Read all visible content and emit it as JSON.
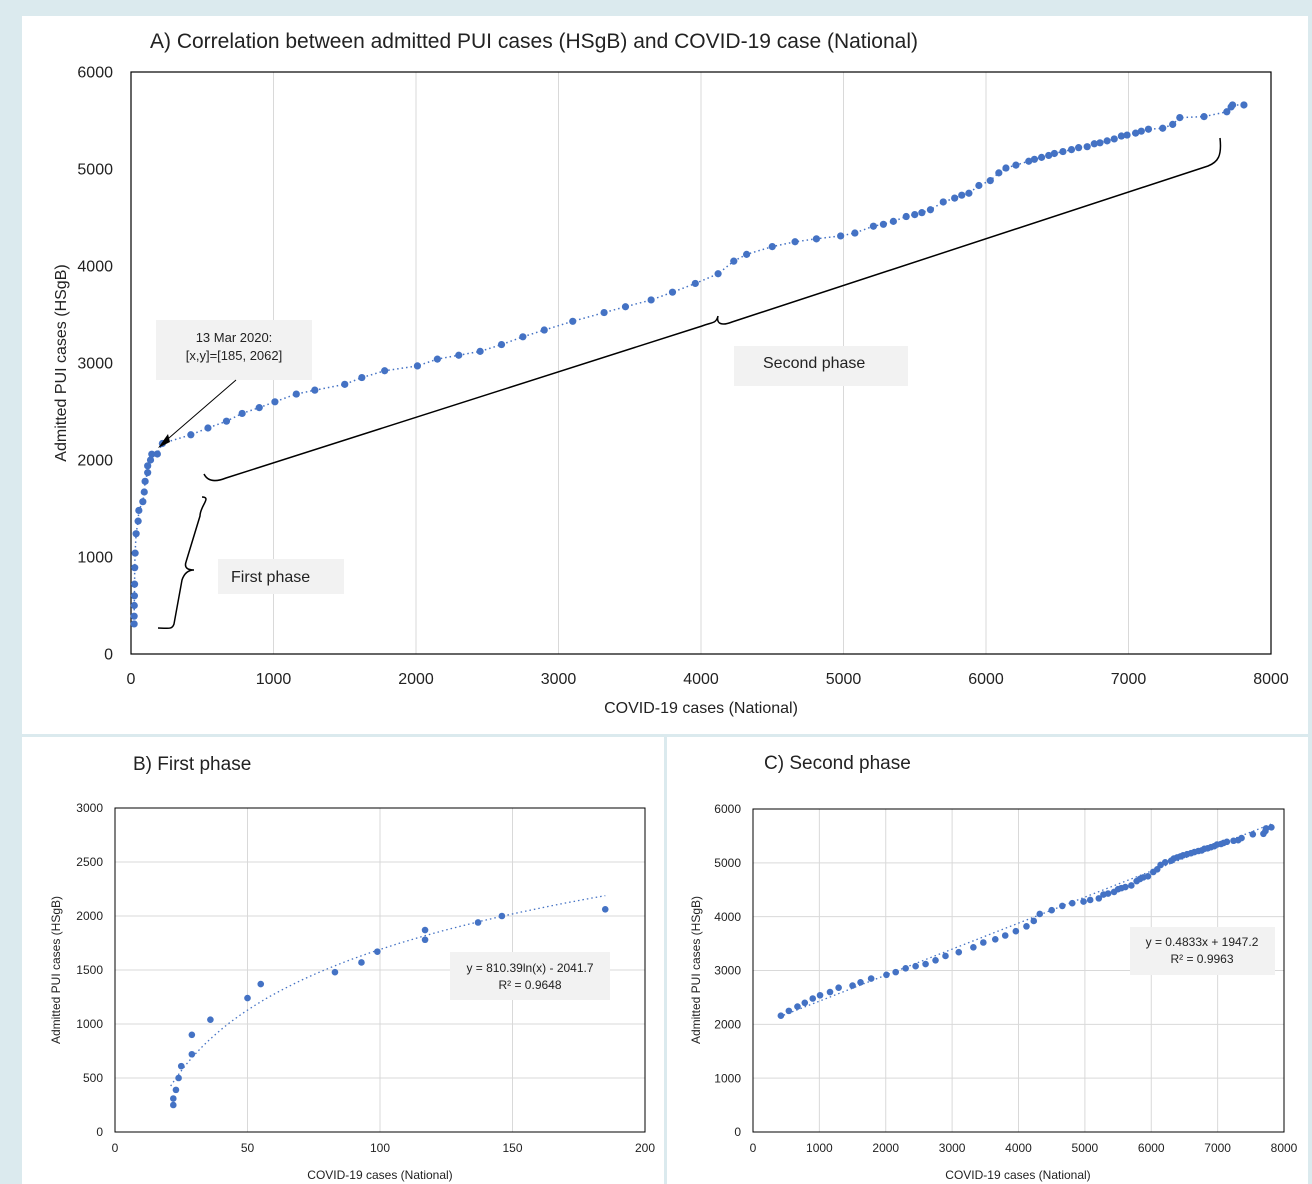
{
  "panels": {
    "a": {
      "title": "A) Correlation between admitted PUI cases (HSgB) and COVID-19 case (National)",
      "callout_line1": "13 Mar 2020:",
      "callout_line2": "[x,y]=[185, 2062]",
      "first_phase_label": "First phase",
      "second_phase_label": "Second phase"
    },
    "b": {
      "title": "B) First phase",
      "equation": "y = 810.39ln(x) - 2041.7",
      "r2": "R² = 0.9648"
    },
    "c": {
      "title": "C) Second phase",
      "equation": "y = 0.4833x + 1947.2",
      "r2": "R² = 0.9963"
    }
  },
  "colors": {
    "marker": "#4472c4",
    "grid": "#d9d9d9",
    "callout_bg": "#f2f2f2"
  },
  "chart_data": [
    {
      "type": "scatter",
      "title": "A) Correlation between admitted PUI cases (HSgB) and COVID-19 case (National)",
      "xlabel": "COVID-19 cases (National)",
      "ylabel": "Admitted PUI cases (HSgB)",
      "xlim": [
        0,
        8000
      ],
      "ylim": [
        0,
        6000
      ],
      "xticks": [
        0,
        1000,
        2000,
        3000,
        4000,
        5000,
        6000,
        7000,
        8000
      ],
      "yticks": [
        0,
        1000,
        2000,
        3000,
        4000,
        5000,
        6000
      ],
      "grid": "vertical",
      "trendline": "dotted, follows points",
      "points": [
        [
          22,
          310
        ],
        [
          22,
          390
        ],
        [
          23,
          500
        ],
        [
          24,
          600
        ],
        [
          25,
          720
        ],
        [
          26,
          890
        ],
        [
          29,
          1040
        ],
        [
          36,
          1240
        ],
        [
          50,
          1370
        ],
        [
          55,
          1480
        ],
        [
          83,
          1570
        ],
        [
          93,
          1670
        ],
        [
          99,
          1780
        ],
        [
          117,
          1870
        ],
        [
          117,
          1940
        ],
        [
          137,
          2000
        ],
        [
          146,
          2060
        ],
        [
          185,
          2062
        ],
        [
          220,
          2170
        ],
        [
          420,
          2260
        ],
        [
          540,
          2330
        ],
        [
          670,
          2400
        ],
        [
          780,
          2480
        ],
        [
          900,
          2540
        ],
        [
          1010,
          2600
        ],
        [
          1160,
          2680
        ],
        [
          1290,
          2720
        ],
        [
          1500,
          2780
        ],
        [
          1620,
          2850
        ],
        [
          1780,
          2920
        ],
        [
          2010,
          2970
        ],
        [
          2150,
          3040
        ],
        [
          2300,
          3080
        ],
        [
          2450,
          3120
        ],
        [
          2600,
          3190
        ],
        [
          2750,
          3270
        ],
        [
          2900,
          3340
        ],
        [
          3100,
          3430
        ],
        [
          3320,
          3520
        ],
        [
          3470,
          3580
        ],
        [
          3650,
          3650
        ],
        [
          3800,
          3730
        ],
        [
          3960,
          3820
        ],
        [
          4120,
          3920
        ],
        [
          4230,
          4050
        ],
        [
          4320,
          4120
        ],
        [
          4500,
          4200
        ],
        [
          4660,
          4250
        ],
        [
          4810,
          4280
        ],
        [
          4980,
          4310
        ],
        [
          5080,
          4340
        ],
        [
          5210,
          4410
        ],
        [
          5280,
          4430
        ],
        [
          5350,
          4460
        ],
        [
          5440,
          4510
        ],
        [
          5500,
          4530
        ],
        [
          5550,
          4550
        ],
        [
          5610,
          4580
        ],
        [
          5700,
          4660
        ],
        [
          5780,
          4700
        ],
        [
          5830,
          4730
        ],
        [
          5880,
          4750
        ],
        [
          5950,
          4830
        ],
        [
          6030,
          4880
        ],
        [
          6090,
          4960
        ],
        [
          6140,
          5010
        ],
        [
          6210,
          5040
        ],
        [
          6300,
          5080
        ],
        [
          6340,
          5100
        ],
        [
          6390,
          5120
        ],
        [
          6440,
          5140
        ],
        [
          6480,
          5160
        ],
        [
          6540,
          5180
        ],
        [
          6600,
          5200
        ],
        [
          6650,
          5220
        ],
        [
          6710,
          5230
        ],
        [
          6760,
          5260
        ],
        [
          6800,
          5270
        ],
        [
          6850,
          5290
        ],
        [
          6900,
          5310
        ],
        [
          6950,
          5340
        ],
        [
          6990,
          5350
        ],
        [
          7050,
          5370
        ],
        [
          7090,
          5390
        ],
        [
          7140,
          5410
        ],
        [
          7240,
          5420
        ],
        [
          7310,
          5460
        ],
        [
          7360,
          5530
        ],
        [
          7530,
          5540
        ],
        [
          7690,
          5590
        ],
        [
          7720,
          5640
        ],
        [
          7730,
          5660
        ],
        [
          7810,
          5660
        ]
      ]
    },
    {
      "type": "scatter",
      "title": "B) First phase",
      "xlabel": "COVID-19 cases (National)",
      "ylabel": "Admitted PUI cases (HSgB)",
      "xlim": [
        0,
        200
      ],
      "ylim": [
        0,
        3000
      ],
      "xticks": [
        0,
        50,
        100,
        150,
        200
      ],
      "yticks": [
        0,
        500,
        1000,
        1500,
        2000,
        2500,
        3000
      ],
      "grid": "both",
      "trendline": {
        "type": "logarithmic",
        "a": 810.39,
        "b": -2041.7,
        "equation": "y = 810.39ln(x) - 2041.7",
        "r2": "R² = 0.9648"
      },
      "points": [
        [
          22,
          250
        ],
        [
          22,
          310
        ],
        [
          23,
          390
        ],
        [
          24,
          500
        ],
        [
          25,
          610
        ],
        [
          29,
          720
        ],
        [
          29,
          900
        ],
        [
          36,
          1040
        ],
        [
          50,
          1240
        ],
        [
          55,
          1370
        ],
        [
          83,
          1480
        ],
        [
          93,
          1570
        ],
        [
          99,
          1670
        ],
        [
          117,
          1780
        ],
        [
          117,
          1870
        ],
        [
          137,
          1940
        ],
        [
          146,
          2000
        ],
        [
          185,
          2062
        ]
      ]
    },
    {
      "type": "scatter",
      "title": "C) Second phase",
      "xlabel": "COVID-19 cases (National)",
      "ylabel": "Admitted PUI cases (HSgB)",
      "xlim": [
        0,
        8000
      ],
      "ylim": [
        0,
        6000
      ],
      "xticks": [
        0,
        1000,
        2000,
        3000,
        4000,
        5000,
        6000,
        7000,
        8000
      ],
      "yticks": [
        0,
        1000,
        2000,
        3000,
        4000,
        5000,
        6000
      ],
      "grid": "both",
      "trendline": {
        "type": "linear",
        "slope": 0.4833,
        "intercept": 1947.2,
        "equation": "y = 0.4833x + 1947.2",
        "r2": "R² = 0.9963"
      },
      "points": [
        [
          420,
          2160
        ],
        [
          540,
          2250
        ],
        [
          670,
          2330
        ],
        [
          780,
          2400
        ],
        [
          900,
          2480
        ],
        [
          1010,
          2540
        ],
        [
          1160,
          2600
        ],
        [
          1290,
          2680
        ],
        [
          1500,
          2720
        ],
        [
          1620,
          2780
        ],
        [
          1780,
          2850
        ],
        [
          2010,
          2920
        ],
        [
          2150,
          2970
        ],
        [
          2300,
          3040
        ],
        [
          2450,
          3080
        ],
        [
          2600,
          3120
        ],
        [
          2750,
          3190
        ],
        [
          2900,
          3270
        ],
        [
          3100,
          3340
        ],
        [
          3320,
          3430
        ],
        [
          3470,
          3520
        ],
        [
          3650,
          3580
        ],
        [
          3800,
          3650
        ],
        [
          3960,
          3730
        ],
        [
          4120,
          3820
        ],
        [
          4230,
          3920
        ],
        [
          4320,
          4050
        ],
        [
          4500,
          4120
        ],
        [
          4660,
          4200
        ],
        [
          4810,
          4250
        ],
        [
          4980,
          4280
        ],
        [
          5080,
          4310
        ],
        [
          5210,
          4340
        ],
        [
          5280,
          4410
        ],
        [
          5350,
          4430
        ],
        [
          5440,
          4460
        ],
        [
          5500,
          4510
        ],
        [
          5550,
          4530
        ],
        [
          5610,
          4550
        ],
        [
          5700,
          4580
        ],
        [
          5780,
          4660
        ],
        [
          5830,
          4700
        ],
        [
          5880,
          4730
        ],
        [
          5950,
          4750
        ],
        [
          6030,
          4830
        ],
        [
          6090,
          4880
        ],
        [
          6140,
          4960
        ],
        [
          6210,
          5010
        ],
        [
          6300,
          5040
        ],
        [
          6340,
          5080
        ],
        [
          6390,
          5100
        ],
        [
          6440,
          5120
        ],
        [
          6480,
          5140
        ],
        [
          6540,
          5160
        ],
        [
          6600,
          5180
        ],
        [
          6650,
          5200
        ],
        [
          6710,
          5220
        ],
        [
          6760,
          5230
        ],
        [
          6800,
          5260
        ],
        [
          6850,
          5270
        ],
        [
          6900,
          5290
        ],
        [
          6950,
          5310
        ],
        [
          6990,
          5340
        ],
        [
          7050,
          5350
        ],
        [
          7090,
          5370
        ],
        [
          7140,
          5390
        ],
        [
          7240,
          5410
        ],
        [
          7310,
          5420
        ],
        [
          7360,
          5460
        ],
        [
          7530,
          5530
        ],
        [
          7690,
          5540
        ],
        [
          7720,
          5590
        ],
        [
          7730,
          5640
        ],
        [
          7810,
          5660
        ]
      ]
    }
  ]
}
